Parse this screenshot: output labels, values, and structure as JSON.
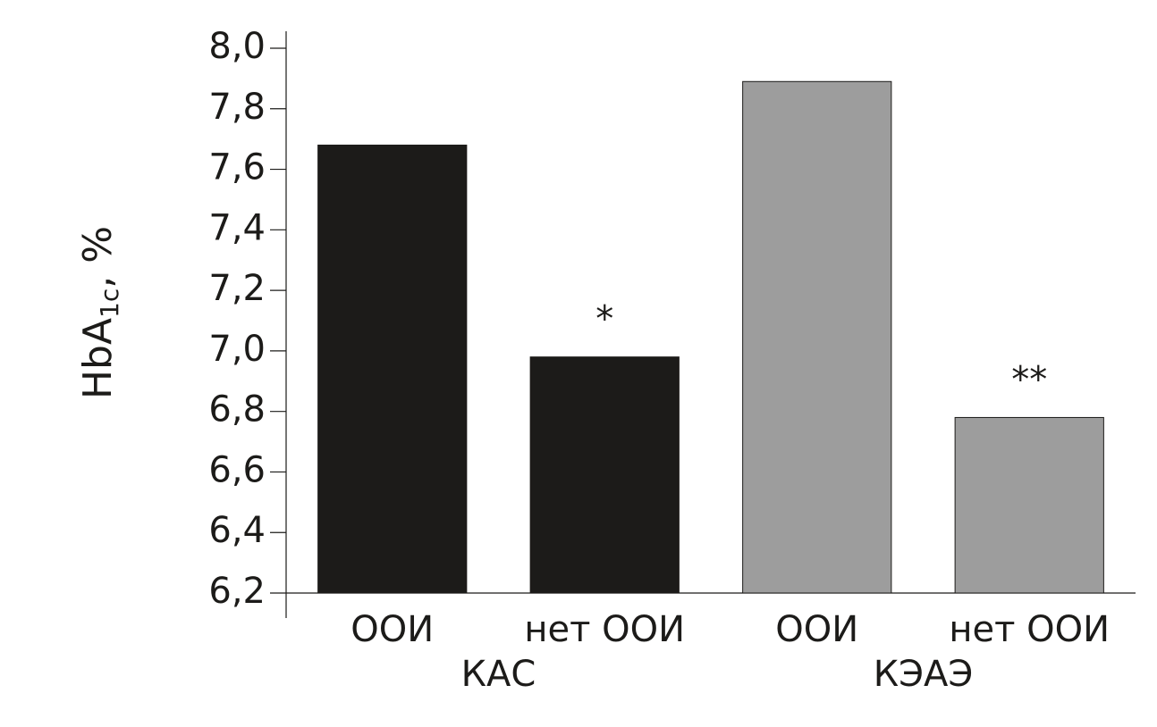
{
  "chart_data": {
    "type": "bar",
    "ylabel": "HbA",
    "ylabel_subscript": "1c",
    "ylabel_suffix": ", %",
    "groups": [
      {
        "name": "КАС",
        "color": "#1c1b19",
        "categories": [
          "ООИ",
          "нет ООИ"
        ],
        "values": [
          7.68,
          6.98
        ],
        "annotations": [
          null,
          "*"
        ]
      },
      {
        "name": "КЭАЭ",
        "color": "#9d9d9d",
        "categories": [
          "ООИ",
          "нет ООИ"
        ],
        "values": [
          7.89,
          6.78
        ],
        "annotations": [
          null,
          "**"
        ]
      }
    ],
    "ylim": [
      6.2,
      8.0
    ],
    "yticks": [
      {
        "value": 6.2,
        "label": "6,2"
      },
      {
        "value": 6.4,
        "label": "6,4"
      },
      {
        "value": 6.6,
        "label": "6,6"
      },
      {
        "value": 6.8,
        "label": "6,8"
      },
      {
        "value": 7.0,
        "label": "7,0"
      },
      {
        "value": 7.2,
        "label": "7,2"
      },
      {
        "value": 7.4,
        "label": "7,4"
      },
      {
        "value": 7.6,
        "label": "7,6"
      },
      {
        "value": 7.8,
        "label": "7,8"
      },
      {
        "value": 8.0,
        "label": "8,0"
      }
    ],
    "grid": false
  }
}
